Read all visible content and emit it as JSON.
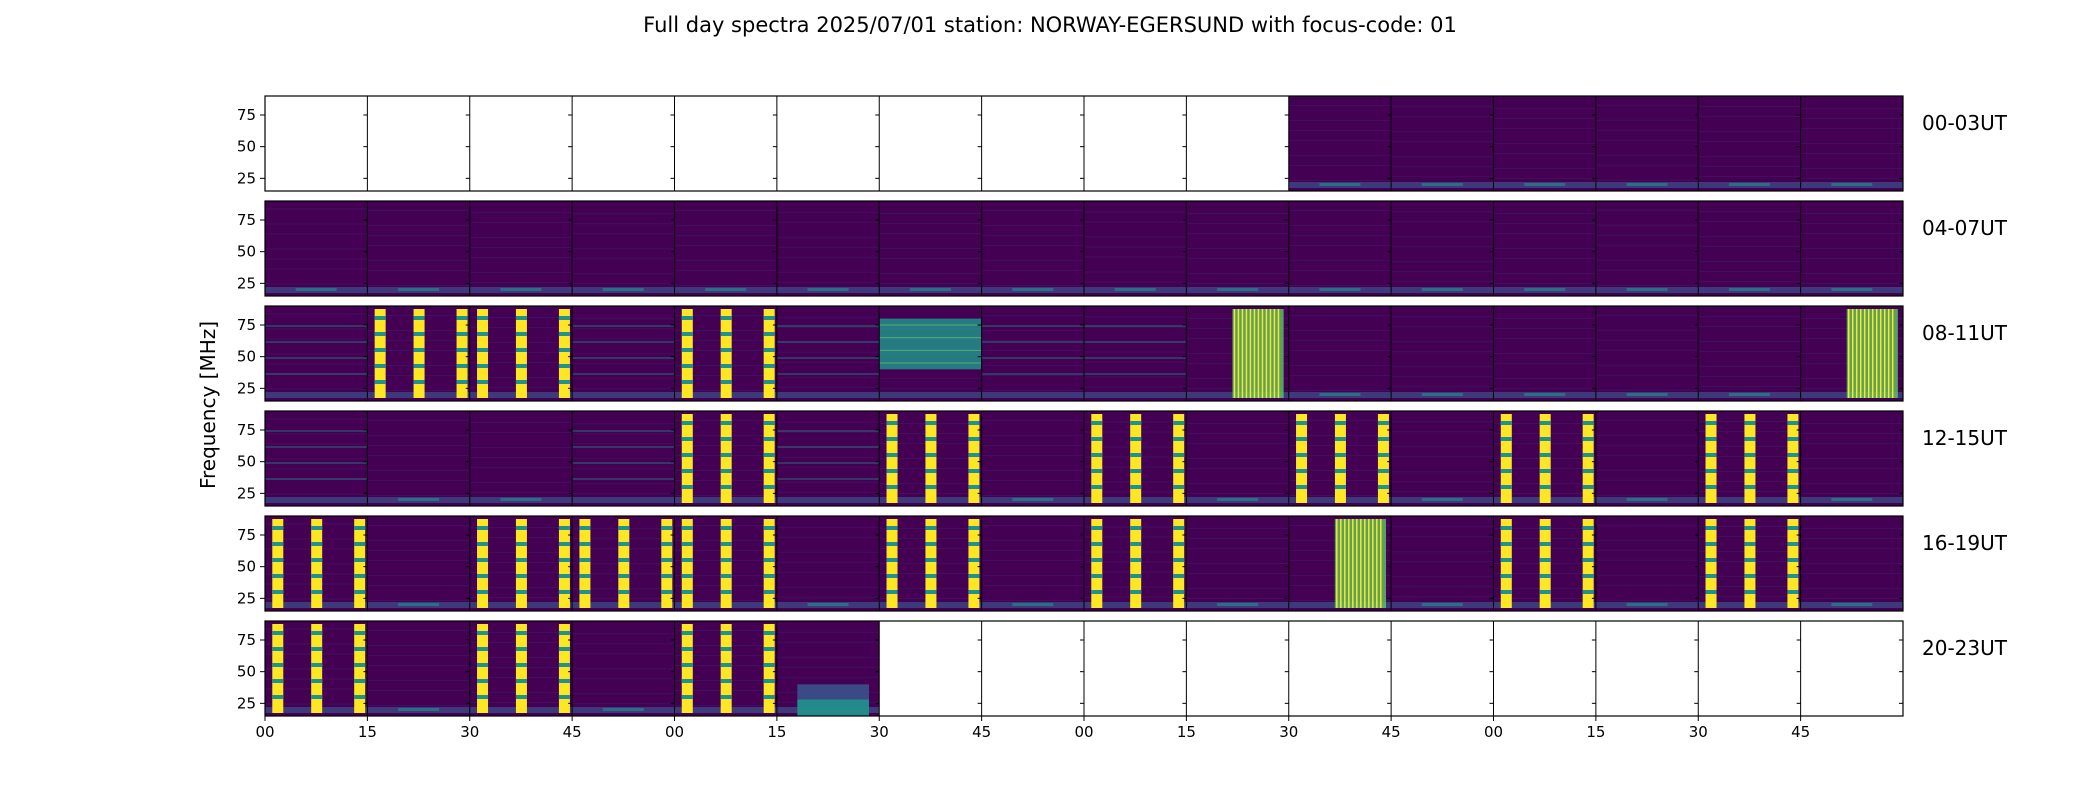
{
  "title": "Full day spectra 2025/07/01 station: NORWAY-EGERSUND with focus-code: 01",
  "ylabel": "Frequency [MHz]",
  "ytick_labels": [
    "75",
    "50",
    "25"
  ],
  "xtick_labels": [
    "00",
    "15",
    "30",
    "45",
    "00",
    "15",
    "30",
    "45",
    "00",
    "15",
    "30",
    "45",
    "00",
    "15",
    "30",
    "45"
  ],
  "colors": {
    "bg": "#440154",
    "mid": "#3b528b",
    "teal": "#21918c",
    "green": "#5ec962",
    "yellow": "#fde725"
  },
  "chart_data": {
    "type": "heatmap",
    "title": "Full day spectra 2025/07/01 station: NORWAY-EGERSUND with focus-code: 01",
    "ylabel": "Frequency [MHz]",
    "y_ticks": [
      75,
      50,
      25
    ],
    "ylim": [
      15,
      90
    ],
    "x_ticks": [
      "00",
      "15",
      "30",
      "45",
      "00",
      "15",
      "30",
      "45",
      "00",
      "15",
      "30",
      "45",
      "00",
      "15",
      "30",
      "45"
    ],
    "rows": [
      {
        "label": "00-03UT",
        "cells": [
          0,
          0,
          0,
          0,
          0,
          0,
          0,
          0,
          0,
          0,
          1,
          1,
          1,
          1,
          1,
          1
        ]
      },
      {
        "label": "04-07UT",
        "cells": [
          1,
          1,
          1,
          1,
          1,
          1,
          1,
          1,
          1,
          1,
          1,
          1,
          1,
          1,
          1,
          1
        ]
      },
      {
        "label": "08-11UT",
        "cells": [
          2,
          3,
          3,
          2,
          3,
          2,
          4,
          2,
          2,
          5,
          1,
          1,
          1,
          1,
          1,
          5
        ]
      },
      {
        "label": "12-15UT",
        "cells": [
          2,
          1,
          1,
          2,
          3,
          2,
          3,
          1,
          3,
          1,
          3,
          1,
          3,
          1,
          3,
          1
        ]
      },
      {
        "label": "16-19UT",
        "cells": [
          3,
          1,
          3,
          3,
          3,
          1,
          3,
          1,
          3,
          1,
          5,
          1,
          3,
          1,
          3,
          1
        ]
      },
      {
        "label": "20-23UT",
        "cells": [
          3,
          1,
          3,
          1,
          3,
          6,
          0,
          0,
          0,
          0,
          0,
          0,
          0,
          0,
          0,
          0
        ]
      }
    ],
    "cell_legend": {
      "0": "no data",
      "1": "quiet background",
      "2": "weak bands",
      "3": "strong vertical bursts",
      "4": "broadband teal block",
      "5": "striped burst",
      "6": "low-frequency block"
    }
  }
}
